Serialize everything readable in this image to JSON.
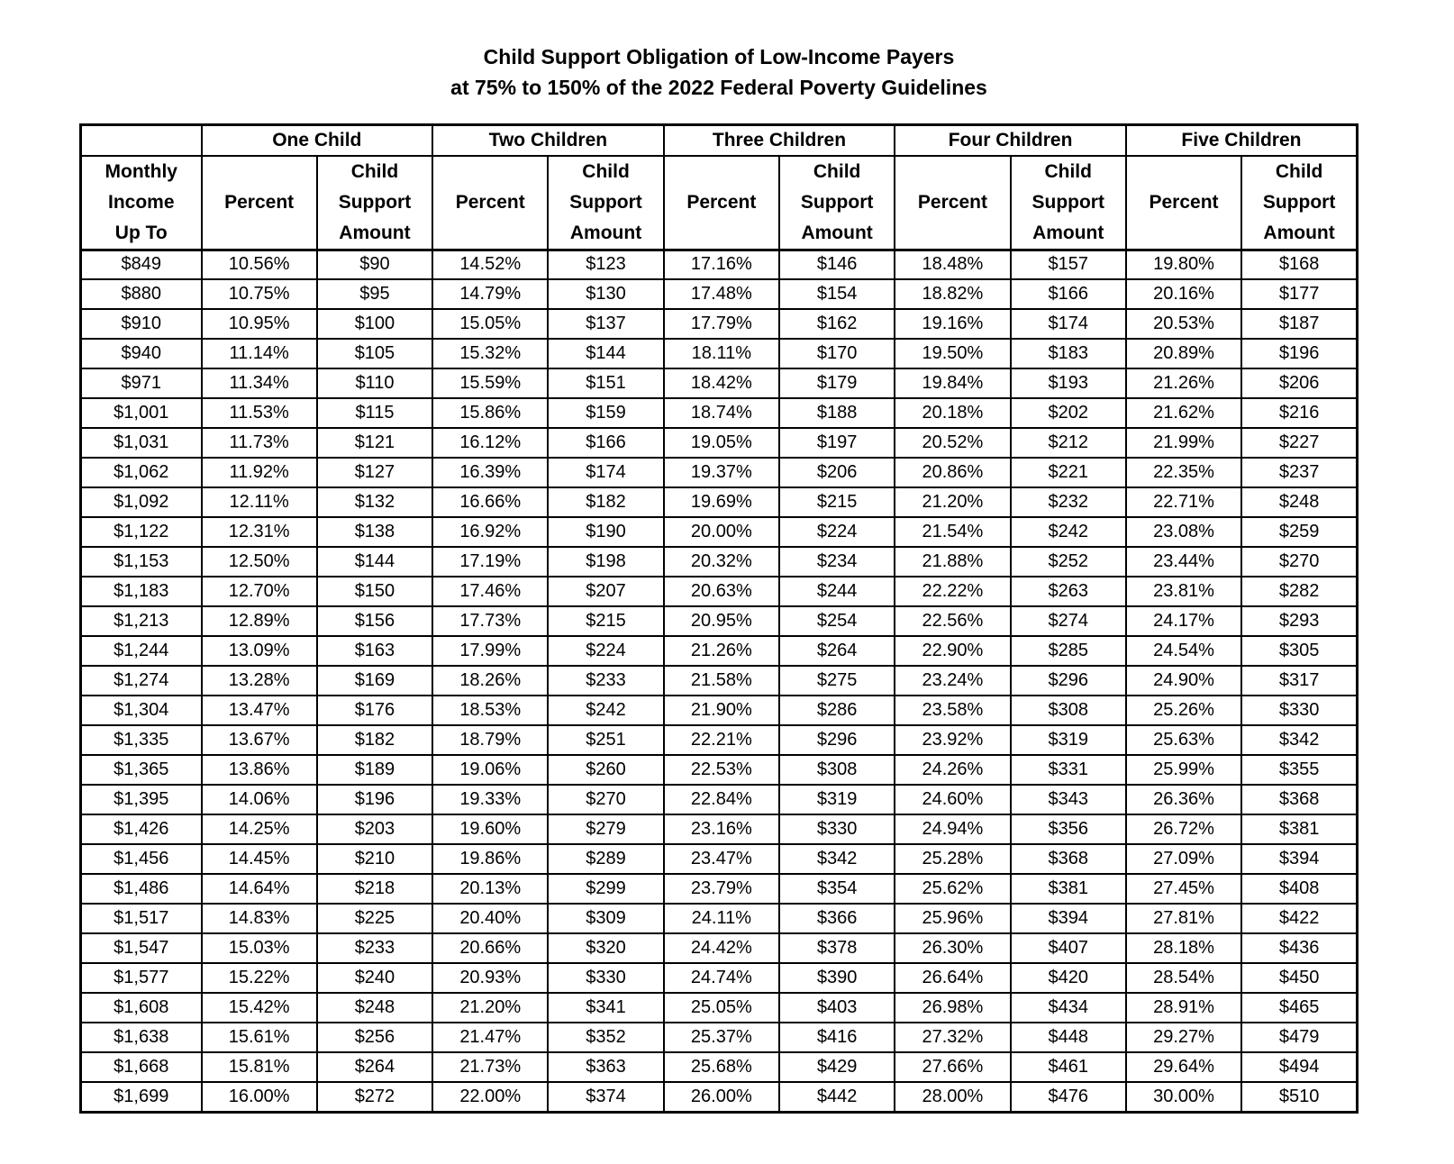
{
  "title": {
    "line1": "Child Support Obligation of Low-Income Payers",
    "line2": "at 75% to 150% of the 2022 Federal Poverty Guidelines"
  },
  "table": {
    "groups": [
      "One Child",
      "Two Children",
      "Three Children",
      "Four Children",
      "Five Children"
    ],
    "income_header": "Monthly\nIncome\nUp To",
    "percent_header": "Percent",
    "amount_header": "Child\nSupport\nAmount",
    "rows": [
      [
        "$849",
        "10.56%",
        "$90",
        "14.52%",
        "$123",
        "17.16%",
        "$146",
        "18.48%",
        "$157",
        "19.80%",
        "$168"
      ],
      [
        "$880",
        "10.75%",
        "$95",
        "14.79%",
        "$130",
        "17.48%",
        "$154",
        "18.82%",
        "$166",
        "20.16%",
        "$177"
      ],
      [
        "$910",
        "10.95%",
        "$100",
        "15.05%",
        "$137",
        "17.79%",
        "$162",
        "19.16%",
        "$174",
        "20.53%",
        "$187"
      ],
      [
        "$940",
        "11.14%",
        "$105",
        "15.32%",
        "$144",
        "18.11%",
        "$170",
        "19.50%",
        "$183",
        "20.89%",
        "$196"
      ],
      [
        "$971",
        "11.34%",
        "$110",
        "15.59%",
        "$151",
        "18.42%",
        "$179",
        "19.84%",
        "$193",
        "21.26%",
        "$206"
      ],
      [
        "$1,001",
        "11.53%",
        "$115",
        "15.86%",
        "$159",
        "18.74%",
        "$188",
        "20.18%",
        "$202",
        "21.62%",
        "$216"
      ],
      [
        "$1,031",
        "11.73%",
        "$121",
        "16.12%",
        "$166",
        "19.05%",
        "$197",
        "20.52%",
        "$212",
        "21.99%",
        "$227"
      ],
      [
        "$1,062",
        "11.92%",
        "$127",
        "16.39%",
        "$174",
        "19.37%",
        "$206",
        "20.86%",
        "$221",
        "22.35%",
        "$237"
      ],
      [
        "$1,092",
        "12.11%",
        "$132",
        "16.66%",
        "$182",
        "19.69%",
        "$215",
        "21.20%",
        "$232",
        "22.71%",
        "$248"
      ],
      [
        "$1,122",
        "12.31%",
        "$138",
        "16.92%",
        "$190",
        "20.00%",
        "$224",
        "21.54%",
        "$242",
        "23.08%",
        "$259"
      ],
      [
        "$1,153",
        "12.50%",
        "$144",
        "17.19%",
        "$198",
        "20.32%",
        "$234",
        "21.88%",
        "$252",
        "23.44%",
        "$270"
      ],
      [
        "$1,183",
        "12.70%",
        "$150",
        "17.46%",
        "$207",
        "20.63%",
        "$244",
        "22.22%",
        "$263",
        "23.81%",
        "$282"
      ],
      [
        "$1,213",
        "12.89%",
        "$156",
        "17.73%",
        "$215",
        "20.95%",
        "$254",
        "22.56%",
        "$274",
        "24.17%",
        "$293"
      ],
      [
        "$1,244",
        "13.09%",
        "$163",
        "17.99%",
        "$224",
        "21.26%",
        "$264",
        "22.90%",
        "$285",
        "24.54%",
        "$305"
      ],
      [
        "$1,274",
        "13.28%",
        "$169",
        "18.26%",
        "$233",
        "21.58%",
        "$275",
        "23.24%",
        "$296",
        "24.90%",
        "$317"
      ],
      [
        "$1,304",
        "13.47%",
        "$176",
        "18.53%",
        "$242",
        "21.90%",
        "$286",
        "23.58%",
        "$308",
        "25.26%",
        "$330"
      ],
      [
        "$1,335",
        "13.67%",
        "$182",
        "18.79%",
        "$251",
        "22.21%",
        "$296",
        "23.92%",
        "$319",
        "25.63%",
        "$342"
      ],
      [
        "$1,365",
        "13.86%",
        "$189",
        "19.06%",
        "$260",
        "22.53%",
        "$308",
        "24.26%",
        "$331",
        "25.99%",
        "$355"
      ],
      [
        "$1,395",
        "14.06%",
        "$196",
        "19.33%",
        "$270",
        "22.84%",
        "$319",
        "24.60%",
        "$343",
        "26.36%",
        "$368"
      ],
      [
        "$1,426",
        "14.25%",
        "$203",
        "19.60%",
        "$279",
        "23.16%",
        "$330",
        "24.94%",
        "$356",
        "26.72%",
        "$381"
      ],
      [
        "$1,456",
        "14.45%",
        "$210",
        "19.86%",
        "$289",
        "23.47%",
        "$342",
        "25.28%",
        "$368",
        "27.09%",
        "$394"
      ],
      [
        "$1,486",
        "14.64%",
        "$218",
        "20.13%",
        "$299",
        "23.79%",
        "$354",
        "25.62%",
        "$381",
        "27.45%",
        "$408"
      ],
      [
        "$1,517",
        "14.83%",
        "$225",
        "20.40%",
        "$309",
        "24.11%",
        "$366",
        "25.96%",
        "$394",
        "27.81%",
        "$422"
      ],
      [
        "$1,547",
        "15.03%",
        "$233",
        "20.66%",
        "$320",
        "24.42%",
        "$378",
        "26.30%",
        "$407",
        "28.18%",
        "$436"
      ],
      [
        "$1,577",
        "15.22%",
        "$240",
        "20.93%",
        "$330",
        "24.74%",
        "$390",
        "26.64%",
        "$420",
        "28.54%",
        "$450"
      ],
      [
        "$1,608",
        "15.42%",
        "$248",
        "21.20%",
        "$341",
        "25.05%",
        "$403",
        "26.98%",
        "$434",
        "28.91%",
        "$465"
      ],
      [
        "$1,638",
        "15.61%",
        "$256",
        "21.47%",
        "$352",
        "25.37%",
        "$416",
        "27.32%",
        "$448",
        "29.27%",
        "$479"
      ],
      [
        "$1,668",
        "15.81%",
        "$264",
        "21.73%",
        "$363",
        "25.68%",
        "$429",
        "27.66%",
        "$461",
        "29.64%",
        "$494"
      ],
      [
        "$1,699",
        "16.00%",
        "$272",
        "22.00%",
        "$374",
        "26.00%",
        "$442",
        "28.00%",
        "$476",
        "30.00%",
        "$510"
      ]
    ]
  }
}
